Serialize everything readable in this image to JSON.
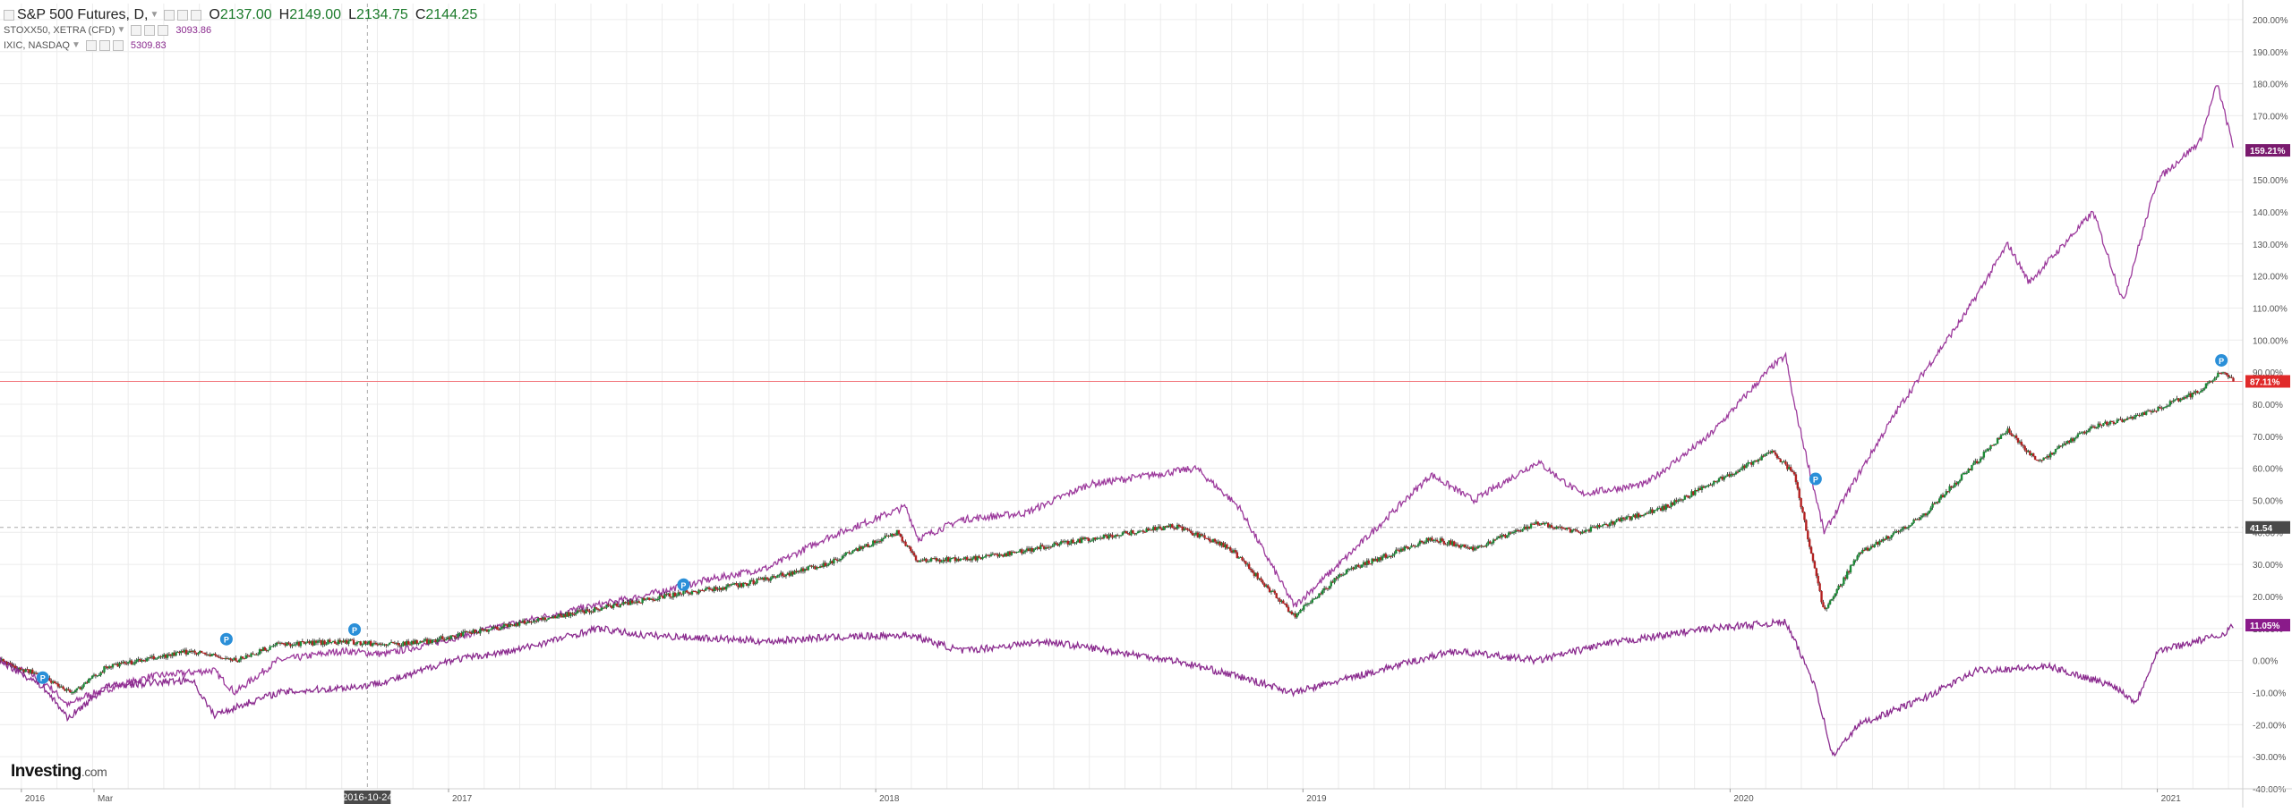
{
  "legend": {
    "main": {
      "name": "S&P 500 Futures, D,",
      "o_label": "O",
      "o": "2137.00",
      "h_label": "H",
      "h": "2149.00",
      "l_label": "L",
      "l": "2134.75",
      "c_label": "C",
      "c": "2144.25"
    },
    "series2": {
      "name": "STOXX50, XETRA (CFD)",
      "value": "3093.86"
    },
    "series3": {
      "name": "IXIC, NASDAQ",
      "value": "5309.83"
    }
  },
  "watermark": {
    "brand": "Investing",
    "suffix": ".com"
  },
  "colors": {
    "nasdaq": "#9c3a9c",
    "stoxx": "#8a2a8e",
    "up": "#1b8a36",
    "down": "#b32020",
    "hline": "#f2757a",
    "grid": "#ececec"
  },
  "chart_data": {
    "type": "line",
    "y_unit": "%",
    "ylim": [
      -40,
      205
    ],
    "y_ticks": [
      "200.00%",
      "190.00%",
      "180.00%",
      "170.00%",
      "160.00%",
      "150.00%",
      "140.00%",
      "130.00%",
      "120.00%",
      "110.00%",
      "100.00%",
      "90.00%",
      "80.00%",
      "70.00%",
      "60.00%",
      "50.00%",
      "40.00%",
      "30.00%",
      "20.00%",
      "10.00%",
      "0.00%",
      "-10.00%",
      "-20.00%",
      "-30.00%",
      "-40.00%"
    ],
    "y_tick_values": [
      200,
      190,
      180,
      170,
      160,
      150,
      140,
      130,
      120,
      110,
      100,
      90,
      80,
      70,
      60,
      50,
      40,
      30,
      20,
      10,
      0,
      -10,
      -20,
      -30,
      -40
    ],
    "x_ticks": [
      {
        "label": "2016",
        "t": 2016.0
      },
      {
        "label": "Mar",
        "t": 2016.17
      },
      {
        "label": "2016-10-24",
        "t": 2016.81,
        "highlight": true
      },
      {
        "label": "2017",
        "t": 2017.0
      },
      {
        "label": "2018",
        "t": 2018.0
      },
      {
        "label": "2019",
        "t": 2019.0
      },
      {
        "label": "2020",
        "t": 2020.0
      },
      {
        "label": "2021",
        "t": 2021.0
      }
    ],
    "xlim": [
      2015.95,
      2021.2
    ],
    "series": [
      {
        "name": "IXIC, NASDAQ",
        "style": "line",
        "points": [
          [
            2015.95,
            0
          ],
          [
            2016.05,
            -6
          ],
          [
            2016.11,
            -14
          ],
          [
            2016.15,
            -11
          ],
          [
            2016.3,
            -5
          ],
          [
            2016.45,
            -3
          ],
          [
            2016.5,
            -10
          ],
          [
            2016.6,
            0
          ],
          [
            2016.75,
            3
          ],
          [
            2016.85,
            2
          ],
          [
            2016.95,
            5
          ],
          [
            2017.1,
            10
          ],
          [
            2017.3,
            16
          ],
          [
            2017.45,
            20
          ],
          [
            2017.6,
            25
          ],
          [
            2017.75,
            29
          ],
          [
            2017.88,
            38
          ],
          [
            2018.07,
            48
          ],
          [
            2018.1,
            38
          ],
          [
            2018.2,
            44
          ],
          [
            2018.35,
            46
          ],
          [
            2018.5,
            55
          ],
          [
            2018.65,
            58
          ],
          [
            2018.75,
            60
          ],
          [
            2018.85,
            48
          ],
          [
            2018.98,
            17
          ],
          [
            2019.1,
            32
          ],
          [
            2019.3,
            58
          ],
          [
            2019.4,
            50
          ],
          [
            2019.55,
            62
          ],
          [
            2019.65,
            52
          ],
          [
            2019.8,
            55
          ],
          [
            2019.95,
            70
          ],
          [
            2020.1,
            92
          ],
          [
            2020.13,
            95
          ],
          [
            2020.15,
            80
          ],
          [
            2020.22,
            40
          ],
          [
            2020.3,
            58
          ],
          [
            2020.4,
            80
          ],
          [
            2020.55,
            108
          ],
          [
            2020.65,
            130
          ],
          [
            2020.7,
            118
          ],
          [
            2020.85,
            140
          ],
          [
            2020.92,
            112
          ],
          [
            2021.0,
            150
          ],
          [
            2021.1,
            162
          ],
          [
            2021.14,
            180
          ],
          [
            2021.18,
            159.21
          ]
        ]
      },
      {
        "name": "S&P 500 Futures",
        "style": "candle",
        "points": [
          [
            2015.95,
            0
          ],
          [
            2016.05,
            -5
          ],
          [
            2016.12,
            -10
          ],
          [
            2016.2,
            -2
          ],
          [
            2016.4,
            3
          ],
          [
            2016.5,
            0
          ],
          [
            2016.6,
            5
          ],
          [
            2016.75,
            6
          ],
          [
            2016.85,
            5
          ],
          [
            2016.95,
            6
          ],
          [
            2017.1,
            10
          ],
          [
            2017.3,
            15
          ],
          [
            2017.5,
            20
          ],
          [
            2017.7,
            24
          ],
          [
            2017.88,
            30
          ],
          [
            2018.05,
            40
          ],
          [
            2018.1,
            31
          ],
          [
            2018.25,
            32
          ],
          [
            2018.5,
            38
          ],
          [
            2018.7,
            42
          ],
          [
            2018.83,
            35
          ],
          [
            2018.98,
            14
          ],
          [
            2019.1,
            28
          ],
          [
            2019.3,
            38
          ],
          [
            2019.4,
            35
          ],
          [
            2019.55,
            43
          ],
          [
            2019.65,
            40
          ],
          [
            2019.85,
            48
          ],
          [
            2020.1,
            65
          ],
          [
            2020.15,
            58
          ],
          [
            2020.22,
            15
          ],
          [
            2020.3,
            33
          ],
          [
            2020.45,
            45
          ],
          [
            2020.65,
            72
          ],
          [
            2020.72,
            62
          ],
          [
            2020.85,
            73
          ],
          [
            2020.95,
            76
          ],
          [
            2021.1,
            84
          ],
          [
            2021.15,
            90
          ],
          [
            2021.18,
            87.11
          ]
        ]
      },
      {
        "name": "STOXX50, XETRA (CFD)",
        "style": "line",
        "points": [
          [
            2015.95,
            0
          ],
          [
            2016.05,
            -8
          ],
          [
            2016.11,
            -18
          ],
          [
            2016.2,
            -8
          ],
          [
            2016.4,
            -6
          ],
          [
            2016.45,
            -17
          ],
          [
            2016.6,
            -10
          ],
          [
            2016.8,
            -8
          ],
          [
            2016.9,
            -5
          ],
          [
            2017.0,
            0
          ],
          [
            2017.15,
            3
          ],
          [
            2017.35,
            10
          ],
          [
            2017.45,
            8
          ],
          [
            2017.6,
            7
          ],
          [
            2017.75,
            6
          ],
          [
            2017.85,
            7
          ],
          [
            2018.08,
            8
          ],
          [
            2018.2,
            3
          ],
          [
            2018.4,
            6
          ],
          [
            2018.55,
            3
          ],
          [
            2018.7,
            0
          ],
          [
            2018.85,
            -5
          ],
          [
            2018.98,
            -10
          ],
          [
            2019.15,
            -4
          ],
          [
            2019.35,
            3
          ],
          [
            2019.55,
            0
          ],
          [
            2019.7,
            5
          ],
          [
            2019.95,
            10
          ],
          [
            2020.13,
            12
          ],
          [
            2020.2,
            -8
          ],
          [
            2020.24,
            -30
          ],
          [
            2020.3,
            -20
          ],
          [
            2020.45,
            -12
          ],
          [
            2020.58,
            -3
          ],
          [
            2020.75,
            -2
          ],
          [
            2020.9,
            -8
          ],
          [
            2020.95,
            -13
          ],
          [
            2021.0,
            3
          ],
          [
            2021.15,
            8
          ],
          [
            2021.18,
            11.05
          ]
        ]
      }
    ],
    "hline": {
      "value": 87.11,
      "label": "87.11%"
    },
    "dashed_h": {
      "value": 41.54,
      "label": "41.54"
    },
    "cursor_x": 2016.81,
    "price_labels": [
      {
        "series": "IXIC, NASDAQ",
        "value": 159.21,
        "label": "159.21%"
      },
      {
        "series": "S&P 500 Futures",
        "value": 87.11,
        "label": "87.11%"
      },
      {
        "series": "crosshair",
        "value": 41.54,
        "label": "41.54"
      },
      {
        "series": "STOXX50, XETRA (CFD)",
        "value": 11.05,
        "label": "11.05%"
      }
    ],
    "markers": {
      "label": "P",
      "points": [
        [
          2016.05,
          -7
        ],
        [
          2016.48,
          5
        ],
        [
          2016.78,
          8
        ],
        [
          2017.55,
          22
        ],
        [
          2020.2,
          55
        ],
        [
          2021.15,
          92
        ]
      ]
    }
  }
}
